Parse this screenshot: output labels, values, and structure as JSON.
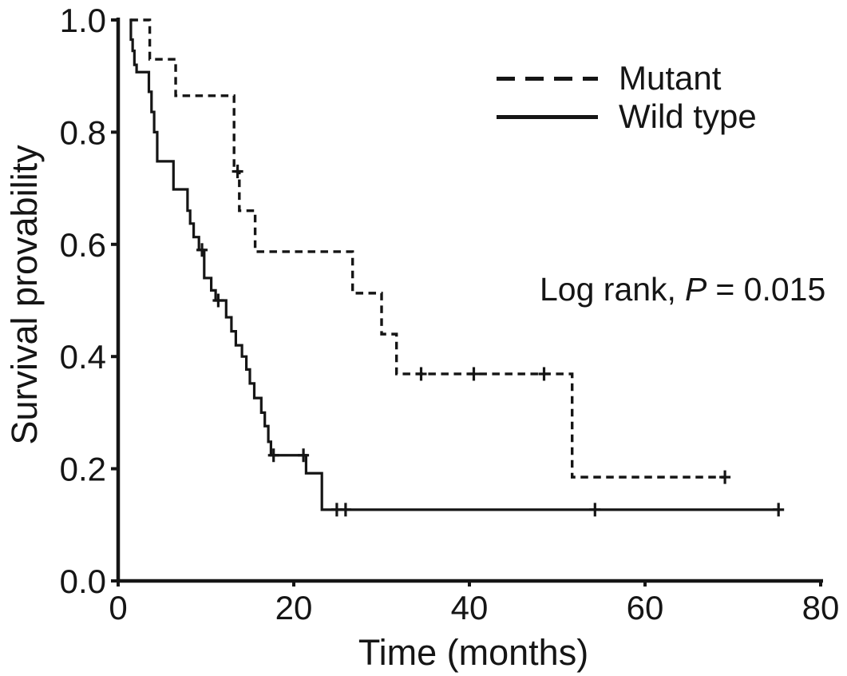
{
  "figure": {
    "background": "#ffffff",
    "ink_color": "#151515"
  },
  "chart_data": {
    "type": "line",
    "subtype": "kaplan-meier-step-curve",
    "title": "",
    "xlabel": "Time (months)",
    "ylabel": "Survival provability",
    "xlim": [
      0,
      80
    ],
    "ylim": [
      0.0,
      1.0
    ],
    "x_ticks": [
      "0",
      "20",
      "40",
      "60",
      "80"
    ],
    "y_ticks": [
      "0.0",
      "0.2",
      "0.4",
      "0.6",
      "0.8",
      "1.0"
    ],
    "grid": false,
    "legend": {
      "position": "top-right",
      "entries": [
        {
          "label": "Mutant",
          "line": "dashed"
        },
        {
          "label": "Wild type",
          "line": "solid"
        }
      ]
    },
    "annotation": {
      "text": "Log rank, P = 0.015",
      "prefix": "Log rank,",
      "p_label": "P",
      "suffix": "= 0.015"
    },
    "series": [
      {
        "name": "Mutant",
        "line": "dashed",
        "steps": [
          [
            1.4,
            1.0
          ],
          [
            3.6,
            0.93
          ],
          [
            6.55,
            0.865
          ],
          [
            13.2,
            0.73
          ],
          [
            13.8,
            0.66
          ],
          [
            15.6,
            0.587
          ],
          [
            26.7,
            0.513
          ],
          [
            30.0,
            0.44
          ],
          [
            31.7,
            0.369
          ],
          [
            51.7,
            0.185
          ]
        ],
        "censors": [
          [
            13.6,
            0.73
          ],
          [
            34.5,
            0.369
          ],
          [
            40.5,
            0.369
          ],
          [
            48.5,
            0.369
          ],
          [
            69.1,
            0.185
          ]
        ],
        "end_time": 69.1
      },
      {
        "name": "Wild type",
        "line": "solid",
        "steps": [
          [
            1.3,
            1.0
          ],
          [
            1.45,
            0.965
          ],
          [
            1.65,
            0.945
          ],
          [
            1.85,
            0.92
          ],
          [
            2.1,
            0.907
          ],
          [
            3.5,
            0.872
          ],
          [
            3.8,
            0.836
          ],
          [
            4.1,
            0.8
          ],
          [
            4.45,
            0.748
          ],
          [
            6.3,
            0.698
          ],
          [
            7.9,
            0.66
          ],
          [
            8.2,
            0.637
          ],
          [
            8.6,
            0.613
          ],
          [
            9.2,
            0.59
          ],
          [
            9.8,
            0.54
          ],
          [
            10.6,
            0.518
          ],
          [
            11.1,
            0.5
          ],
          [
            12.3,
            0.47
          ],
          [
            12.9,
            0.445
          ],
          [
            13.4,
            0.42
          ],
          [
            14.1,
            0.4
          ],
          [
            14.6,
            0.377
          ],
          [
            15.0,
            0.352
          ],
          [
            15.5,
            0.326
          ],
          [
            16.3,
            0.3
          ],
          [
            16.7,
            0.276
          ],
          [
            17.1,
            0.248
          ],
          [
            17.4,
            0.224
          ],
          [
            21.4,
            0.192
          ],
          [
            23.2,
            0.127
          ]
        ],
        "censors": [
          [
            9.55,
            0.59
          ],
          [
            11.4,
            0.5
          ],
          [
            17.7,
            0.224
          ],
          [
            21.1,
            0.224
          ],
          [
            24.9,
            0.127
          ],
          [
            25.9,
            0.127
          ],
          [
            54.3,
            0.127
          ],
          [
            75.2,
            0.127
          ]
        ],
        "end_time": 75.2
      }
    ]
  }
}
